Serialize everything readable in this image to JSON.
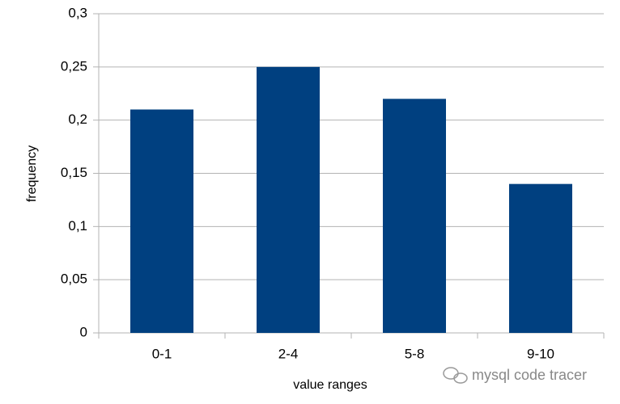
{
  "chart_data": {
    "type": "bar",
    "x_label": "value ranges",
    "y_label": "frequency",
    "categories": [
      "0-1",
      "2-4",
      "5-8",
      "9-10"
    ],
    "values": [
      0.21,
      0.25,
      0.22,
      0.14
    ],
    "color": "#004080",
    "ylim": [
      0,
      0.3
    ],
    "yticks": [
      0,
      {
        "value": 0.05,
        "label": "0,05"
      },
      {
        "value": 0.1,
        "label": "0,1"
      },
      {
        "value": 0.15,
        "label": "0,15"
      },
      {
        "value": 0.2,
        "label": "0,2"
      },
      {
        "value": 0.25,
        "label": "0,25"
      },
      {
        "value": 0.3,
        "label": "0,3"
      }
    ],
    "grid": true,
    "watermark": "mysql code tracer"
  }
}
